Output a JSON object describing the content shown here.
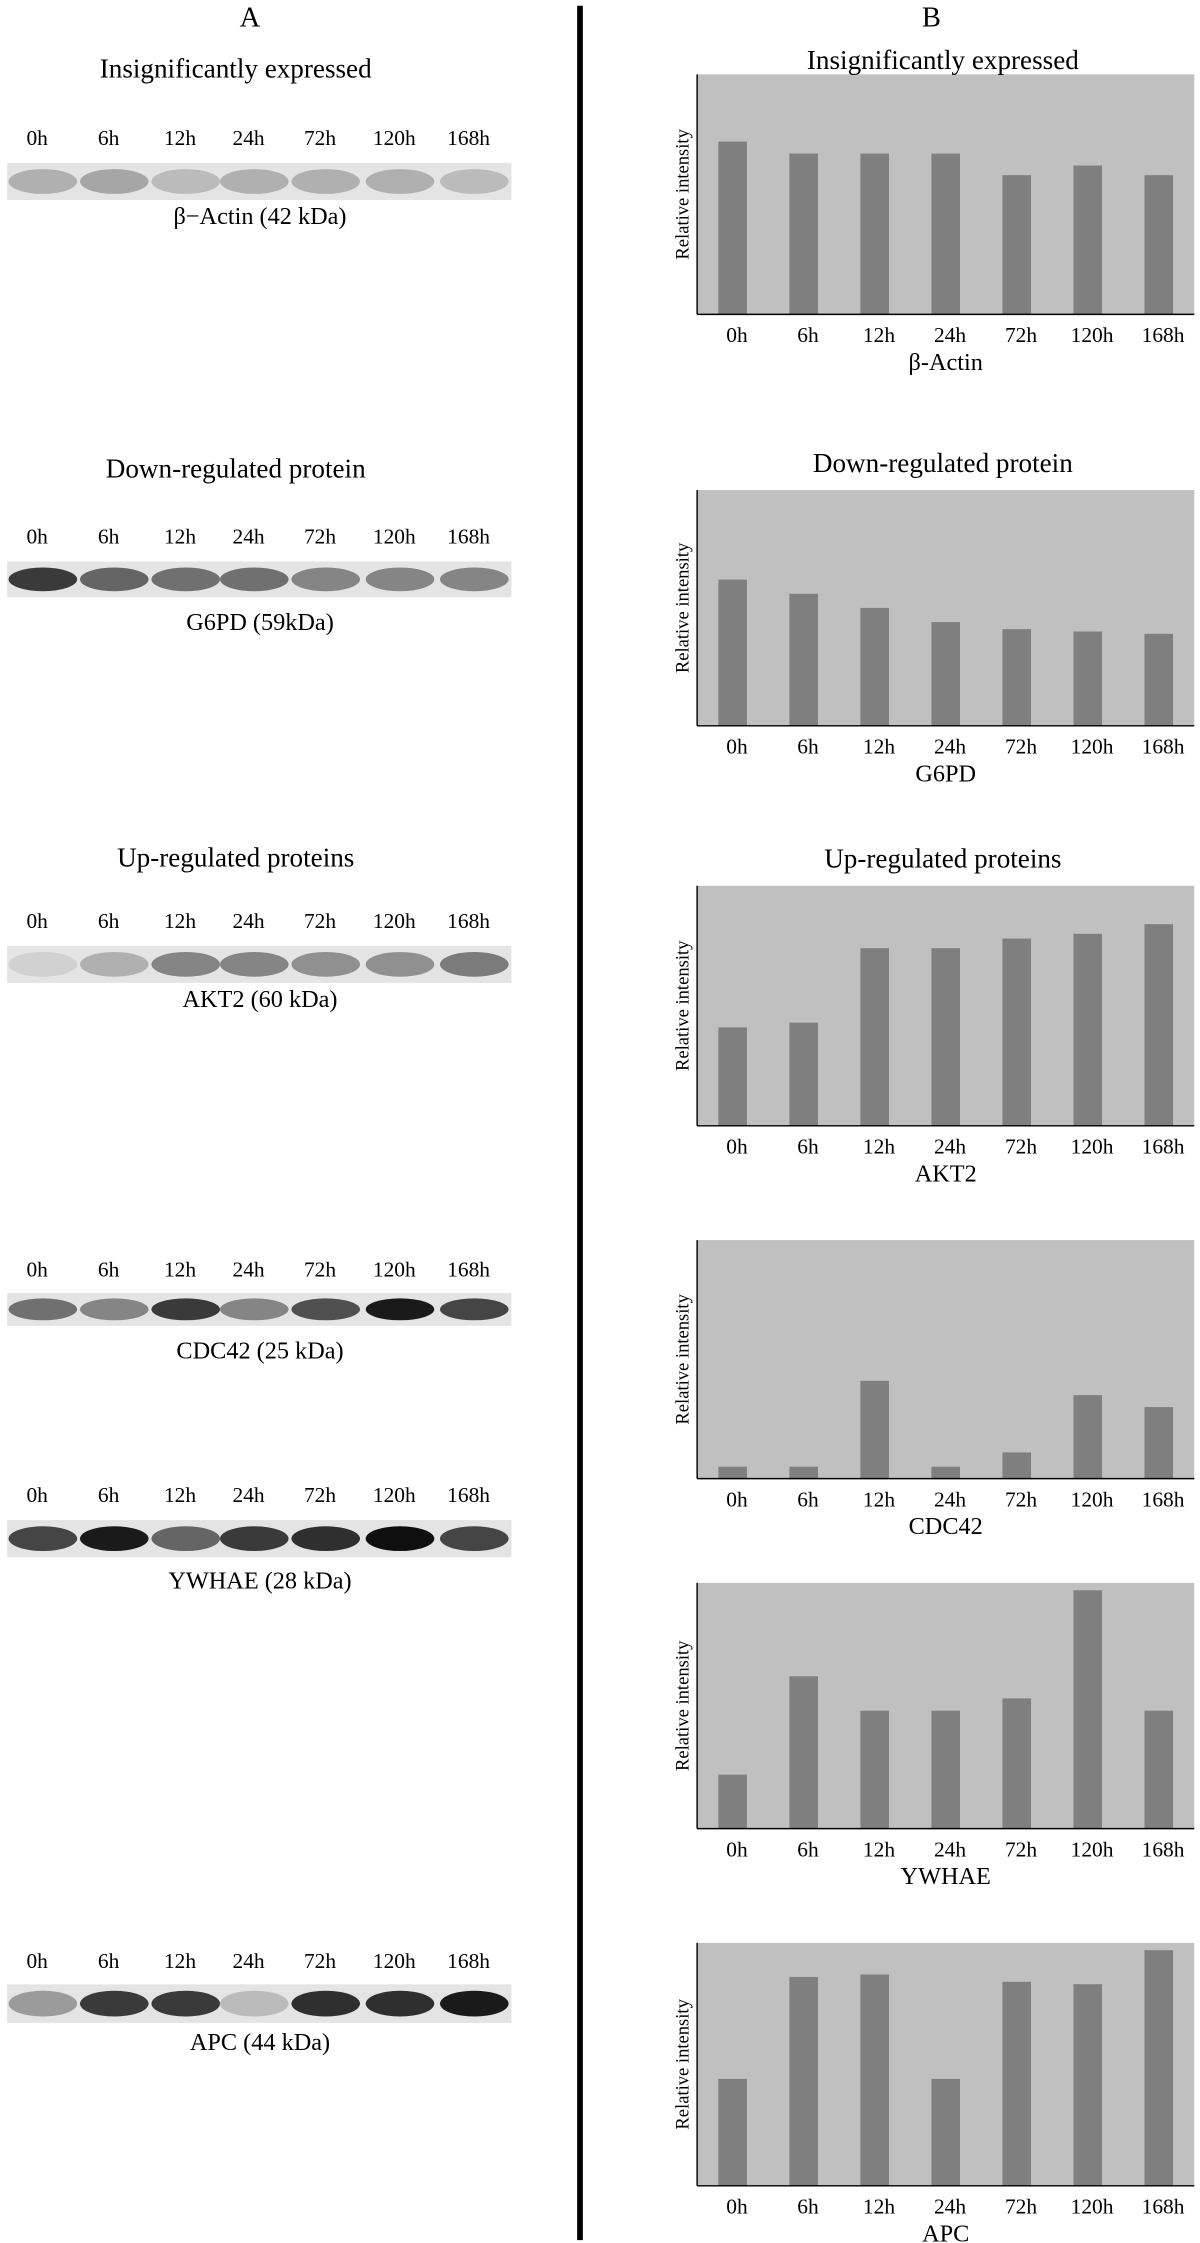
{
  "panel_labels": [
    "A",
    "B"
  ],
  "blots": [
    {
      "title": "Insignificantly expressed",
      "lanes": [
        "0h",
        "6h",
        "12h",
        "24h",
        "72h",
        "120h",
        "168h"
      ],
      "protein": "β−Actin (42 kDa)"
    },
    {
      "title": "Down-regulated protein",
      "lanes": [
        "0h",
        "6h",
        "12h",
        "24h",
        "72h",
        "120h",
        "168h"
      ],
      "protein": "G6PD (59kDa)"
    },
    {
      "title": "Up-regulated proteins",
      "lanes": [
        "0h",
        "6h",
        "12h",
        "24h",
        "72h",
        "120h",
        "168h"
      ],
      "protein": "AKT2 (60 kDa)"
    },
    {
      "lanes": [
        "0h",
        "6h",
        "12h",
        "24h",
        "72h",
        "120h",
        "168h"
      ],
      "protein": "CDC42 (25 kDa)"
    },
    {
      "lanes": [
        "0h",
        "6h",
        "12h",
        "24h",
        "72h",
        "120h",
        "168h"
      ],
      "protein": "YWHAE (28 kDa)"
    },
    {
      "lanes": [
        "0h",
        "6h",
        "12h",
        "24h",
        "72h",
        "120h",
        "168h"
      ],
      "protein": "APC (44 kDa)"
    }
  ],
  "chart_data": [
    {
      "type": "bar",
      "title": "Insignificantly expressed",
      "ylabel": "Relative intensity",
      "xlabel": "β-Actin",
      "categories": [
        "0h",
        "6h",
        "12h",
        "24h",
        "72h",
        "120h",
        "168h"
      ],
      "values": [
        72,
        67,
        67,
        67,
        58,
        62,
        58
      ],
      "ylim": [
        0,
        100
      ],
      "color": "#7f7f7f",
      "background": "#c0c0c0"
    },
    {
      "type": "bar",
      "title": "Down-regulated protein",
      "ylabel": "Relative intensity",
      "xlabel": "G6PD",
      "categories": [
        "0h",
        "6h",
        "12h",
        "24h",
        "72h",
        "120h",
        "168h"
      ],
      "values": [
        62,
        56,
        50,
        44,
        41,
        40,
        39
      ],
      "ylim": [
        0,
        100
      ],
      "color": "#7f7f7f",
      "background": "#c0c0c0"
    },
    {
      "type": "bar",
      "title": "Up-regulated proteins",
      "ylabel": "Relative intensity",
      "xlabel": "AKT2",
      "categories": [
        "0h",
        "6h",
        "12h",
        "24h",
        "72h",
        "120h",
        "168h"
      ],
      "values": [
        41,
        43,
        74,
        74,
        78,
        80,
        84
      ],
      "ylim": [
        0,
        100
      ],
      "color": "#7f7f7f",
      "background": "#c0c0c0"
    },
    {
      "type": "bar",
      "ylabel": "Relative intensity",
      "xlabel": "CDC42",
      "categories": [
        "0h",
        "6h",
        "12h",
        "24h",
        "72h",
        "120h",
        "168h"
      ],
      "values": [
        5,
        5,
        41,
        5,
        11,
        35,
        30
      ],
      "ylim": [
        0,
        100
      ],
      "color": "#7f7f7f",
      "background": "#c0c0c0"
    },
    {
      "type": "bar",
      "ylabel": "Relative intensity",
      "xlabel": "YWHAE",
      "categories": [
        "0h",
        "6h",
        "12h",
        "24h",
        "72h",
        "120h",
        "168h"
      ],
      "values": [
        22,
        62,
        48,
        48,
        53,
        97,
        48
      ],
      "ylim": [
        0,
        100
      ],
      "color": "#7f7f7f",
      "background": "#c0c0c0"
    },
    {
      "type": "bar",
      "ylabel": "Relative intensity",
      "xlabel": "APC",
      "categories": [
        "0h",
        "6h",
        "12h",
        "24h",
        "72h",
        "120h",
        "168h"
      ],
      "values": [
        44,
        86,
        87,
        44,
        84,
        83,
        97
      ],
      "ylim": [
        0,
        100
      ],
      "color": "#7f7f7f",
      "background": "#c0c0c0"
    }
  ]
}
